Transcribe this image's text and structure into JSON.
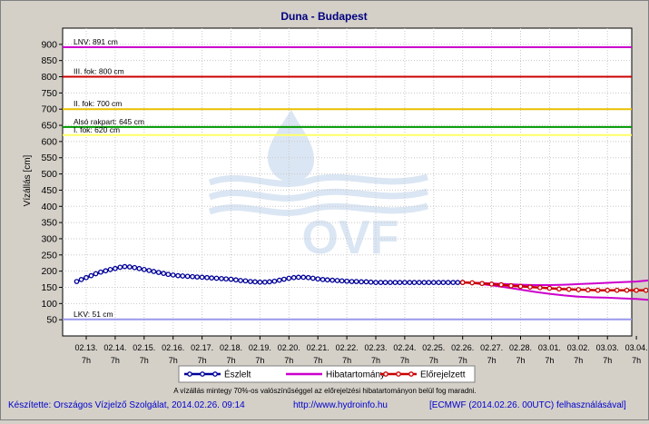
{
  "chart_data": {
    "type": "line",
    "title": "Duna - Budapest",
    "ylabel": "Vízállás [cm]",
    "ylim": [
      0,
      950
    ],
    "yticks": [
      50,
      100,
      150,
      200,
      250,
      300,
      350,
      400,
      450,
      500,
      550,
      600,
      650,
      700,
      750,
      800,
      850,
      900
    ],
    "grid": true,
    "categories": [
      {
        "date": "02.13.",
        "hour": "7h"
      },
      {
        "date": "02.14.",
        "hour": "7h"
      },
      {
        "date": "02.15.",
        "hour": "7h"
      },
      {
        "date": "02.16.",
        "hour": "7h"
      },
      {
        "date": "02.17.",
        "hour": "7h"
      },
      {
        "date": "02.18.",
        "hour": "7h"
      },
      {
        "date": "02.19.",
        "hour": "7h"
      },
      {
        "date": "02.20.",
        "hour": "7h"
      },
      {
        "date": "02.21.",
        "hour": "7h"
      },
      {
        "date": "02.22.",
        "hour": "7h"
      },
      {
        "date": "02.23.",
        "hour": "7h"
      },
      {
        "date": "02.24.",
        "hour": "7h"
      },
      {
        "date": "02.25.",
        "hour": "7h"
      },
      {
        "date": "02.26.",
        "hour": "7h"
      },
      {
        "date": "02.27.",
        "hour": "7h"
      },
      {
        "date": "02.28.",
        "hour": "7h"
      },
      {
        "date": "03.01.",
        "hour": "7h"
      },
      {
        "date": "03.02.",
        "hour": "7h"
      },
      {
        "date": "03.03.",
        "hour": "7h"
      },
      {
        "date": "03.04.",
        "hour": "7h"
      }
    ],
    "thresholds": [
      {
        "label": "LNV: 891 cm",
        "value": 891,
        "color": "#cc00cc"
      },
      {
        "label": "III. fok: 800 cm",
        "value": 800,
        "color": "#cc0000"
      },
      {
        "label": "II. fok: 700 cm",
        "value": 700,
        "color": "#e8c000"
      },
      {
        "label": "Alsó rakpart: 645 cm",
        "value": 645,
        "color": "#009900"
      },
      {
        "label": "I. fok: 620 cm",
        "value": 620,
        "color": "#ffff66"
      },
      {
        "label": "LKV: 51 cm",
        "value": 51,
        "color": "#9999ee"
      }
    ],
    "series": [
      {
        "name": "Észlelt",
        "color": "#000099",
        "x": [
          -0.33,
          -0.17,
          0,
          0.17,
          0.33,
          0.5,
          0.67,
          0.83,
          1,
          1.17,
          1.33,
          1.5,
          1.67,
          1.83,
          2,
          2.17,
          2.33,
          2.5,
          2.67,
          2.83,
          3,
          3.17,
          3.33,
          3.5,
          3.67,
          3.83,
          4,
          4.17,
          4.33,
          4.5,
          4.67,
          4.83,
          5,
          5.17,
          5.33,
          5.5,
          5.67,
          5.83,
          6,
          6.17,
          6.33,
          6.5,
          6.67,
          6.83,
          7,
          7.17,
          7.33,
          7.5,
          7.67,
          7.83,
          8,
          8.17,
          8.33,
          8.5,
          8.67,
          8.83,
          9,
          9.17,
          9.33,
          9.5,
          9.67,
          9.83,
          10,
          10.17,
          10.33,
          10.5,
          10.67,
          10.83,
          11,
          11.17,
          11.33,
          11.5,
          11.67,
          11.83,
          12,
          12.17,
          12.33,
          12.5,
          12.67,
          12.83,
          13
        ],
        "values": [
          168,
          174,
          180,
          186,
          192,
          197,
          201,
          205,
          208,
          212,
          214,
          213,
          211,
          208,
          205,
          202,
          199,
          196,
          193,
          190,
          188,
          186,
          185,
          184,
          183,
          182,
          181,
          180,
          179,
          178,
          177,
          176,
          175,
          173,
          171,
          170,
          168,
          167,
          166,
          166,
          167,
          169,
          172,
          175,
          178,
          180,
          181,
          181,
          180,
          178,
          176,
          174,
          173,
          172,
          171,
          170,
          169,
          168,
          168,
          167,
          167,
          166,
          165,
          165,
          165,
          165,
          165,
          165,
          165,
          165,
          165,
          165,
          165,
          165,
          165,
          165,
          165,
          165,
          165,
          165,
          165
        ]
      },
      {
        "name": "Hibatartomány",
        "color": "#cc00cc",
        "x": [
          13,
          13.5,
          14,
          14.5,
          15,
          15.5,
          16,
          16.5,
          17,
          17.5,
          18,
          18.5,
          19,
          19.5,
          20
        ],
        "upper": [
          165,
          164,
          162,
          160,
          158,
          157,
          157,
          158,
          160,
          162,
          164,
          166,
          168,
          172,
          178
        ],
        "lower": [
          165,
          162,
          156,
          150,
          143,
          136,
          130,
          125,
          121,
          119,
          118,
          116,
          114,
          111,
          108
        ]
      },
      {
        "name": "Előrejelzett",
        "color": "#cc0000",
        "x": [
          13,
          13.33,
          13.67,
          14,
          14.33,
          14.67,
          15,
          15.33,
          15.67,
          16,
          16.33,
          16.67,
          17,
          17.33,
          17.67,
          18,
          18.33,
          18.67,
          19,
          19.33,
          19.67,
          20
        ],
        "values": [
          165,
          164,
          162,
          160,
          158,
          155,
          153,
          151,
          149,
          147,
          145,
          144,
          143,
          142,
          141,
          141,
          141,
          141,
          141,
          141,
          141,
          141
        ]
      }
    ],
    "legend": {
      "placement": "bottom",
      "entries": [
        "Észlelt",
        "Hibatartomány",
        "Előrejelzett"
      ]
    },
    "watermark": "OVF",
    "note": "A vízállás mintegy 70%-os valószínűséggel az előrejelzési hibatartományon belül fog maradni."
  },
  "footer": {
    "left": "Készítette: Országos Vízjelző Szolgálat, 2014.02.26. 09:14",
    "center": "http://www.hydroinfo.hu",
    "right": "[ECMWF (2014.02.26. 00UTC) felhasználásával]"
  }
}
